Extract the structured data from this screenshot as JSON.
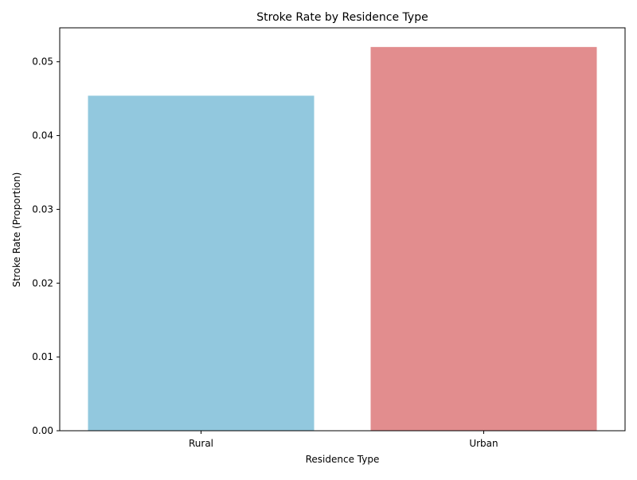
{
  "chart_data": {
    "type": "bar",
    "title": "Stroke Rate by Residence Type",
    "xlabel": "Residence Type",
    "ylabel": "Stroke Rate (Proportion)",
    "categories": [
      "Rural",
      "Urban"
    ],
    "values": [
      0.0454,
      0.052
    ],
    "colors": [
      "#92c8de",
      "#e28d8e"
    ],
    "ylim": [
      0,
      0.0546
    ],
    "yticks": [
      0.0,
      0.01,
      0.02,
      0.03,
      0.04,
      0.05
    ],
    "ytick_labels": [
      "0.00",
      "0.01",
      "0.02",
      "0.03",
      "0.04",
      "0.05"
    ],
    "grid": false,
    "legend": "none"
  }
}
